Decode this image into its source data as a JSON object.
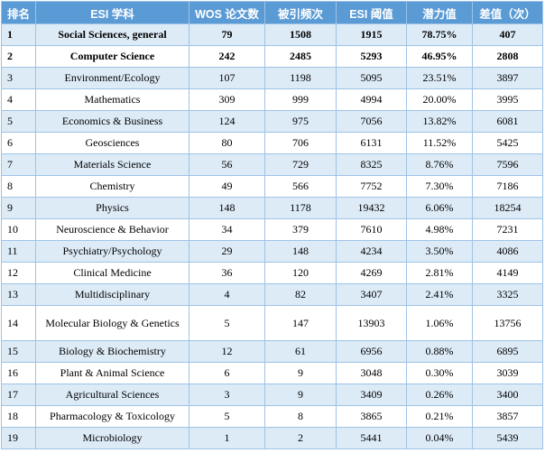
{
  "table": {
    "headers": [
      "排名",
      "ESI 学科",
      "WOS 论文数",
      "被引频次",
      "ESI 阈值",
      "潜力值",
      "差值（次）"
    ],
    "rows": [
      {
        "rank": "1",
        "subject": "Social Sciences, general",
        "wos": "79",
        "citations": "1508",
        "threshold": "1915",
        "potential": "78.75%",
        "diff": "407",
        "bold": true
      },
      {
        "rank": "2",
        "subject": "Computer Science",
        "wos": "242",
        "citations": "2485",
        "threshold": "5293",
        "potential": "46.95%",
        "diff": "2808",
        "bold": true
      },
      {
        "rank": "3",
        "subject": "Environment/Ecology",
        "wos": "107",
        "citations": "1198",
        "threshold": "5095",
        "potential": "23.51%",
        "diff": "3897"
      },
      {
        "rank": "4",
        "subject": "Mathematics",
        "wos": "309",
        "citations": "999",
        "threshold": "4994",
        "potential": "20.00%",
        "diff": "3995"
      },
      {
        "rank": "5",
        "subject": "Economics & Business",
        "wos": "124",
        "citations": "975",
        "threshold": "7056",
        "potential": "13.82%",
        "diff": "6081"
      },
      {
        "rank": "6",
        "subject": "Geosciences",
        "wos": "80",
        "citations": "706",
        "threshold": "6131",
        "potential": "11.52%",
        "diff": "5425"
      },
      {
        "rank": "7",
        "subject": "Materials Science",
        "wos": "56",
        "citations": "729",
        "threshold": "8325",
        "potential": "8.76%",
        "diff": "7596"
      },
      {
        "rank": "8",
        "subject": "Chemistry",
        "wos": "49",
        "citations": "566",
        "threshold": "7752",
        "potential": "7.30%",
        "diff": "7186"
      },
      {
        "rank": "9",
        "subject": "Physics",
        "wos": "148",
        "citations": "1178",
        "threshold": "19432",
        "potential": "6.06%",
        "diff": "18254"
      },
      {
        "rank": "10",
        "subject": "Neuroscience & Behavior",
        "wos": "34",
        "citations": "379",
        "threshold": "7610",
        "potential": "4.98%",
        "diff": "7231"
      },
      {
        "rank": "11",
        "subject": "Psychiatry/Psychology",
        "wos": "29",
        "citations": "148",
        "threshold": "4234",
        "potential": "3.50%",
        "diff": "4086"
      },
      {
        "rank": "12",
        "subject": "Clinical Medicine",
        "wos": "36",
        "citations": "120",
        "threshold": "4269",
        "potential": "2.81%",
        "diff": "4149"
      },
      {
        "rank": "13",
        "subject": "Multidisciplinary",
        "wos": "4",
        "citations": "82",
        "threshold": "3407",
        "potential": "2.41%",
        "diff": "3325"
      },
      {
        "rank": "14",
        "subject": "Molecular Biology & Genetics",
        "wos": "5",
        "citations": "147",
        "threshold": "13903",
        "potential": "1.06%",
        "diff": "13756",
        "tall": true
      },
      {
        "rank": "15",
        "subject": "Biology & Biochemistry",
        "wos": "12",
        "citations": "61",
        "threshold": "6956",
        "potential": "0.88%",
        "diff": "6895"
      },
      {
        "rank": "16",
        "subject": "Plant & Animal Science",
        "wos": "6",
        "citations": "9",
        "threshold": "3048",
        "potential": "0.30%",
        "diff": "3039"
      },
      {
        "rank": "17",
        "subject": "Agricultural Sciences",
        "wos": "3",
        "citations": "9",
        "threshold": "3409",
        "potential": "0.26%",
        "diff": "3400"
      },
      {
        "rank": "18",
        "subject": "Pharmacology & Toxicology",
        "wos": "5",
        "citations": "8",
        "threshold": "3865",
        "potential": "0.21%",
        "diff": "3857"
      },
      {
        "rank": "19",
        "subject": "Microbiology",
        "wos": "1",
        "citations": "2",
        "threshold": "5441",
        "potential": "0.04%",
        "diff": "5439"
      }
    ]
  }
}
